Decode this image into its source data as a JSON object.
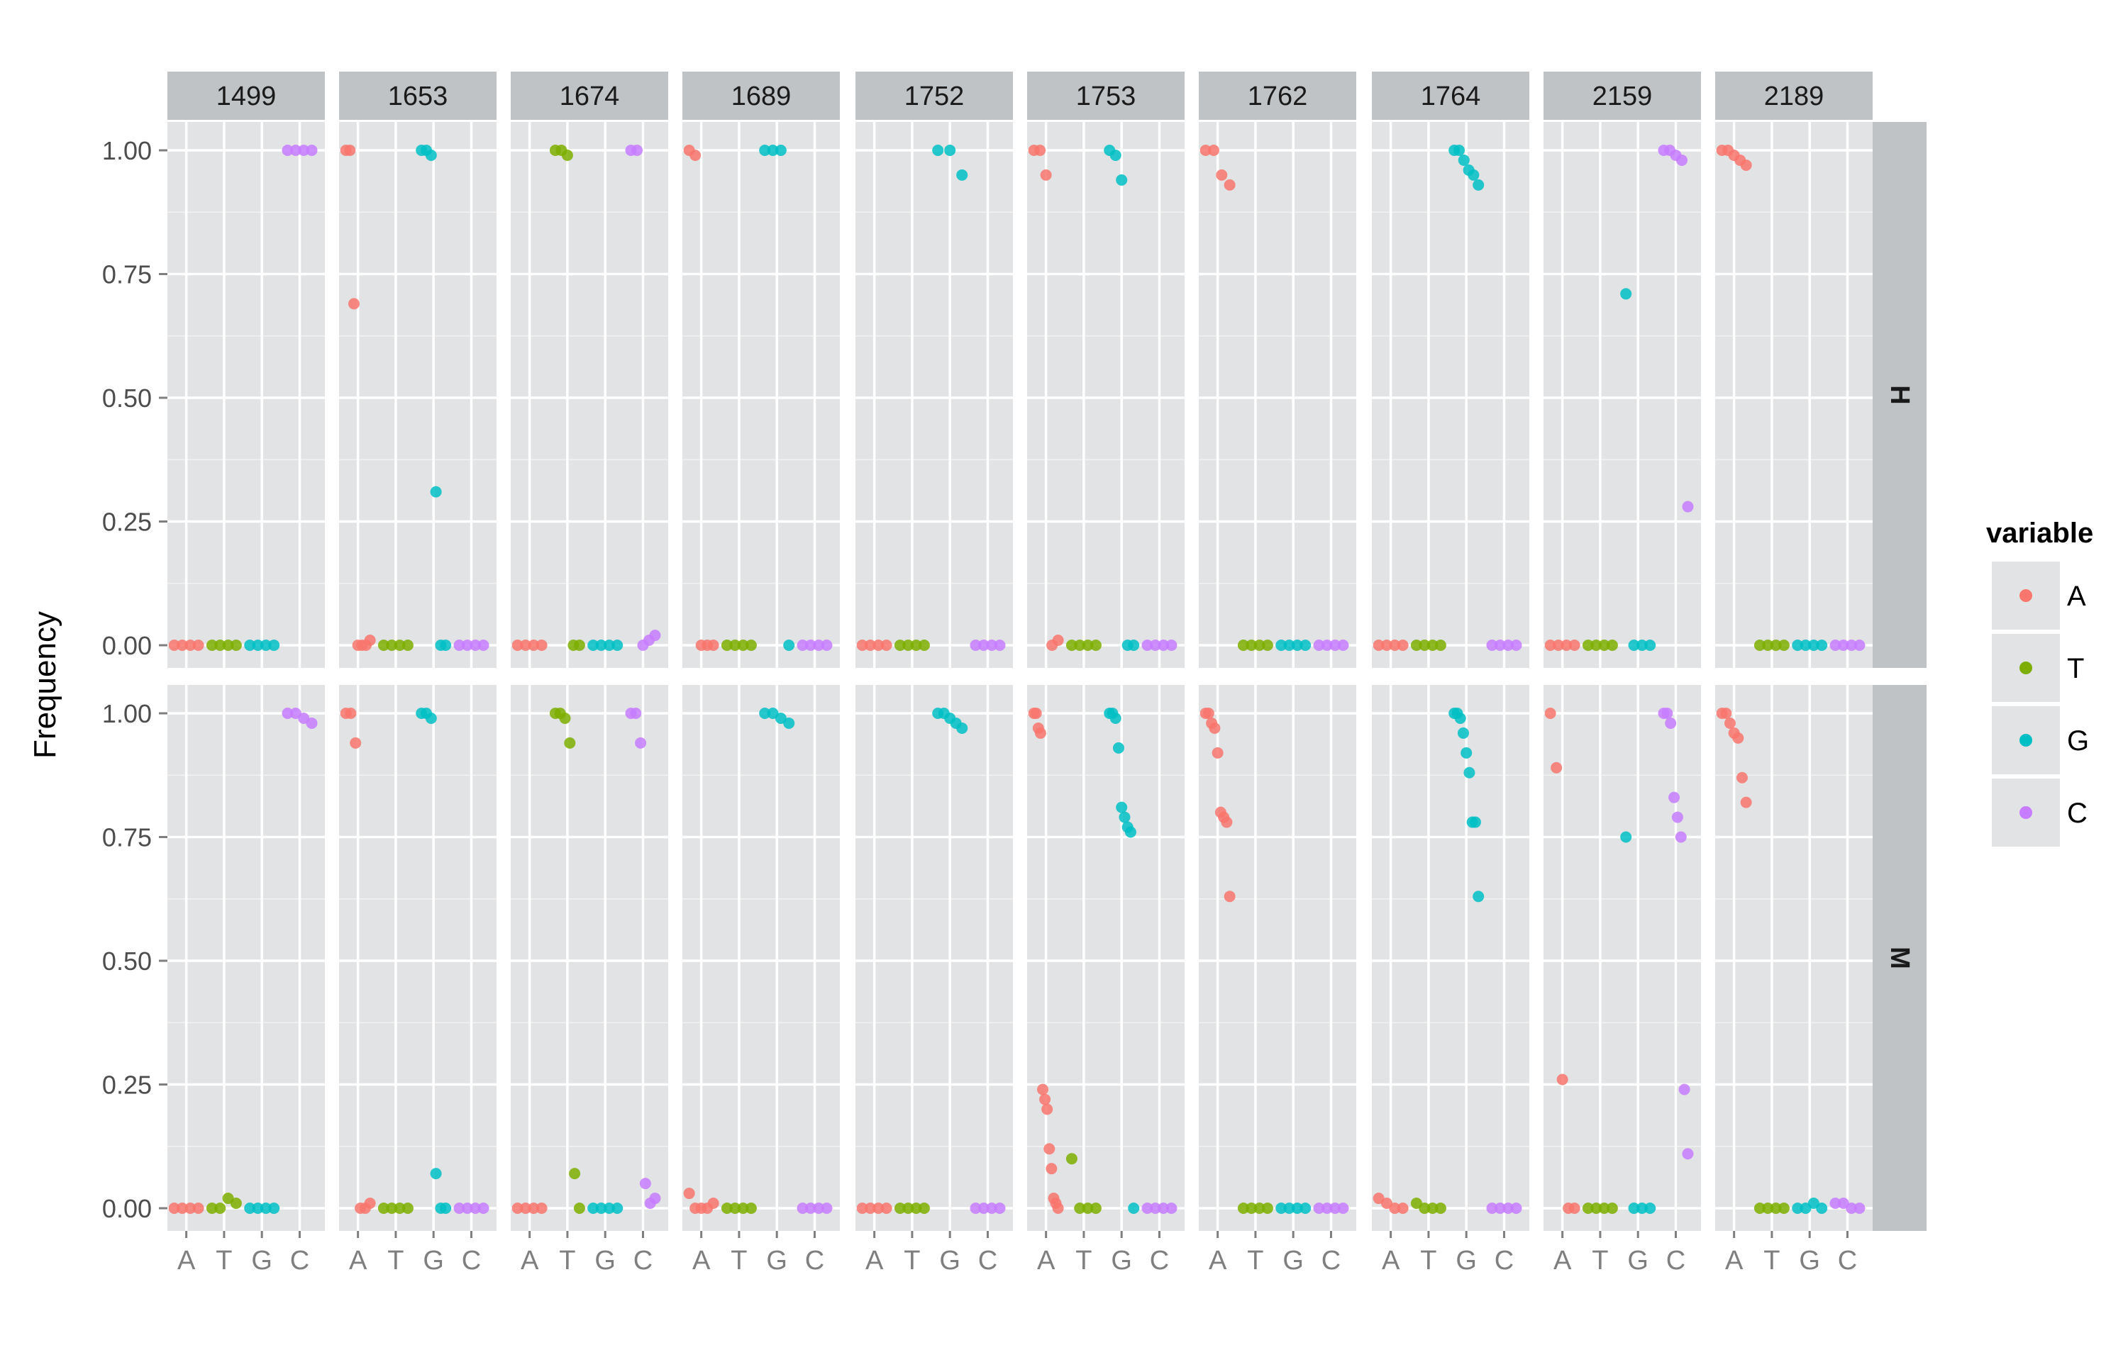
{
  "chart_data": {
    "type": "scatter",
    "facet_columns": [
      "1499",
      "1653",
      "1674",
      "1689",
      "1752",
      "1753",
      "1762",
      "1764",
      "2159",
      "2189"
    ],
    "facet_rows": [
      "H",
      "M"
    ],
    "x_categories": [
      "A",
      "T",
      "G",
      "C"
    ],
    "ylabel": "Frequency",
    "xlabel": "",
    "ylim": [
      0,
      1.05
    ],
    "y_ticks": [
      "0.00",
      "0.25",
      "0.50",
      "0.75",
      "1.00"
    ],
    "grid": true,
    "legend": {
      "title": "variable",
      "position": "right",
      "entries": [
        "A",
        "T",
        "G",
        "C"
      ]
    },
    "colors": {
      "A": "#F8766D",
      "T": "#7CAE00",
      "G": "#00BFC4",
      "C": "#C77CFF"
    },
    "panels": {
      "H": {
        "1499": {
          "A": [
            0,
            0,
            0,
            0
          ],
          "T": [
            0,
            0,
            0,
            0
          ],
          "G": [
            0,
            0,
            0,
            0
          ],
          "C": [
            1,
            1,
            1,
            1
          ]
        },
        "1653": {
          "A": [
            1,
            1,
            0.69,
            0,
            0,
            0,
            0.01
          ],
          "T": [
            0,
            0,
            0,
            0
          ],
          "G": [
            1,
            1,
            0.99,
            0.31,
            0,
            0
          ],
          "C": [
            0,
            0,
            0,
            0
          ]
        },
        "1674": {
          "A": [
            0,
            0,
            0,
            0
          ],
          "T": [
            1,
            1,
            0.99,
            0,
            0
          ],
          "G": [
            0,
            0,
            0,
            0
          ],
          "C": [
            1,
            1,
            0,
            0.01,
            0.02
          ]
        },
        "1689": {
          "A": [
            1,
            0.99,
            0,
            0,
            0
          ],
          "T": [
            0,
            0,
            0,
            0
          ],
          "G": [
            1,
            1,
            1,
            0
          ],
          "C": [
            0,
            0,
            0,
            0
          ]
        },
        "1752": {
          "A": [
            0,
            0,
            0,
            0
          ],
          "T": [
            0,
            0,
            0,
            0
          ],
          "G": [
            1,
            1,
            0.95
          ],
          "C": [
            0,
            0,
            0,
            0
          ]
        },
        "1753": {
          "A": [
            1,
            1,
            0.95,
            0,
            0.01
          ],
          "T": [
            0,
            0,
            0,
            0
          ],
          "G": [
            1,
            0.99,
            0.94,
            0,
            0
          ],
          "C": [
            0,
            0,
            0,
            0
          ]
        },
        "1762": {
          "A": [
            1,
            1,
            0.95,
            0.93
          ],
          "T": [
            0,
            0,
            0,
            0
          ],
          "G": [
            0,
            0,
            0,
            0
          ],
          "C": [
            0,
            0,
            0,
            0
          ]
        },
        "1764": {
          "A": [
            0,
            0,
            0,
            0
          ],
          "T": [
            0,
            0,
            0,
            0
          ],
          "G": [
            1,
            1,
            0.98,
            0.96,
            0.95,
            0.93
          ],
          "C": [
            0,
            0,
            0,
            0
          ]
        },
        "2159": {
          "A": [
            0,
            0,
            0,
            0
          ],
          "T": [
            0,
            0,
            0,
            0
          ],
          "G": [
            0.71,
            0,
            0,
            0
          ],
          "C": [
            1,
            1,
            0.99,
            0.98,
            0.28
          ]
        },
        "2189": {
          "A": [
            1,
            1,
            0.99,
            0.98,
            0.97
          ],
          "T": [
            0,
            0,
            0,
            0
          ],
          "G": [
            0,
            0,
            0,
            0
          ],
          "C": [
            0,
            0,
            0,
            0
          ]
        }
      },
      "M": {
        "1499": {
          "A": [
            0,
            0,
            0,
            0
          ],
          "T": [
            0,
            0,
            0.02,
            0.01
          ],
          "G": [
            0,
            0,
            0,
            0
          ],
          "C": [
            1,
            1,
            0.99,
            0.98
          ]
        },
        "1653": {
          "A": [
            1,
            1,
            0.94,
            0,
            0,
            0.01
          ],
          "T": [
            0,
            0,
            0,
            0
          ],
          "G": [
            1,
            1,
            0.99,
            0.07,
            0,
            0
          ],
          "C": [
            0,
            0,
            0,
            0
          ]
        },
        "1674": {
          "A": [
            0,
            0,
            0,
            0
          ],
          "T": [
            1,
            1,
            0.99,
            0.94,
            0.07,
            0
          ],
          "G": [
            0,
            0,
            0,
            0
          ],
          "C": [
            1,
            1,
            0.94,
            0.05,
            0.01,
            0.02
          ]
        },
        "1689": {
          "A": [
            0.03,
            0,
            0,
            0,
            0.01
          ],
          "T": [
            0,
            0,
            0,
            0
          ],
          "G": [
            1,
            1,
            0.99,
            0.98
          ],
          "C": [
            0,
            0,
            0,
            0
          ]
        },
        "1752": {
          "A": [
            0,
            0,
            0,
            0
          ],
          "T": [
            0,
            0,
            0,
            0
          ],
          "G": [
            1,
            1,
            0.99,
            0.98,
            0.97
          ],
          "C": [
            0,
            0,
            0,
            0
          ]
        },
        "1753": {
          "A": [
            1,
            1,
            0.97,
            0.96,
            0.24,
            0.22,
            0.2,
            0.12,
            0.08,
            0.02,
            0.01,
            0
          ],
          "T": [
            0.1,
            0,
            0,
            0
          ],
          "G": [
            1,
            1,
            0.99,
            0.93,
            0.81,
            0.79,
            0.77,
            0.76,
            0
          ],
          "C": [
            0,
            0,
            0,
            0
          ]
        },
        "1762": {
          "A": [
            1,
            1,
            0.98,
            0.97,
            0.92,
            0.8,
            0.79,
            0.78,
            0.63
          ],
          "T": [
            0,
            0,
            0,
            0
          ],
          "G": [
            0,
            0,
            0,
            0
          ],
          "C": [
            0,
            0,
            0,
            0
          ]
        },
        "1764": {
          "A": [
            0.02,
            0.01,
            0,
            0
          ],
          "T": [
            0.01,
            0,
            0,
            0
          ],
          "G": [
            1,
            1,
            0.99,
            0.96,
            0.92,
            0.88,
            0.78,
            0.78,
            0.63
          ],
          "C": [
            0,
            0,
            0,
            0
          ]
        },
        "2159": {
          "A": [
            1,
            0.89,
            0.26,
            0,
            0
          ],
          "T": [
            0,
            0,
            0,
            0
          ],
          "G": [
            0.75,
            0,
            0,
            0
          ],
          "C": [
            1,
            1,
            0.98,
            0.83,
            0.79,
            0.75,
            0.24,
            0.11
          ]
        },
        "2189": {
          "A": [
            1,
            1,
            0.98,
            0.96,
            0.95,
            0.87,
            0.82
          ],
          "T": [
            0,
            0,
            0,
            0
          ],
          "G": [
            0,
            0,
            0.01,
            0
          ],
          "C": [
            0.01,
            0.01,
            0,
            0
          ]
        }
      }
    }
  }
}
